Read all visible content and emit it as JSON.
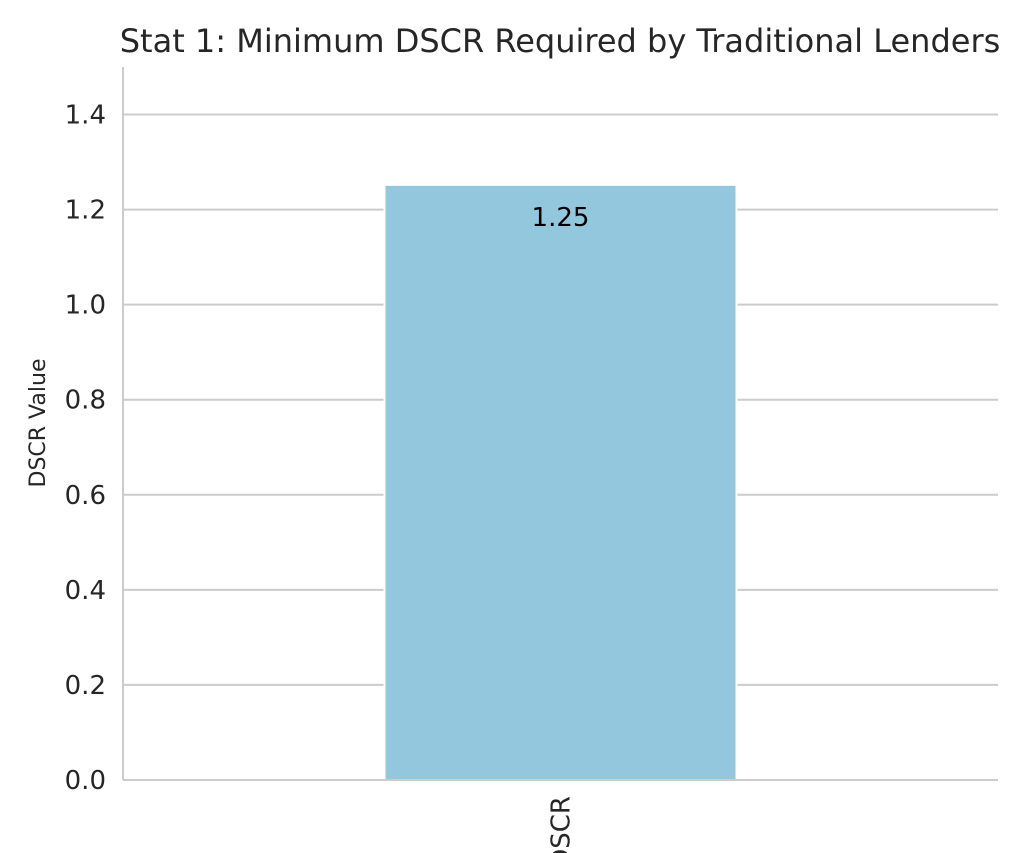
{
  "chart_data": {
    "type": "bar",
    "title": "Stat 1: Minimum DSCR Required by Traditional Lenders",
    "xlabel": "",
    "ylabel": "DSCR Value",
    "categories": [
      "DSCR"
    ],
    "values": [
      1.25
    ],
    "data_labels": [
      "1.25"
    ],
    "ylim": [
      0,
      1.5
    ],
    "yticks": [
      0.0,
      0.2,
      0.4,
      0.6,
      0.8,
      1.0,
      1.2,
      1.4
    ],
    "ytick_labels": [
      "0.0",
      "0.2",
      "0.4",
      "0.6",
      "0.8",
      "1.0",
      "1.2",
      "1.4"
    ],
    "grid": "horizontal",
    "legend": "none",
    "colors": {
      "bar": "#92c7de",
      "grid": "#cccccc",
      "text": "#262626"
    }
  }
}
